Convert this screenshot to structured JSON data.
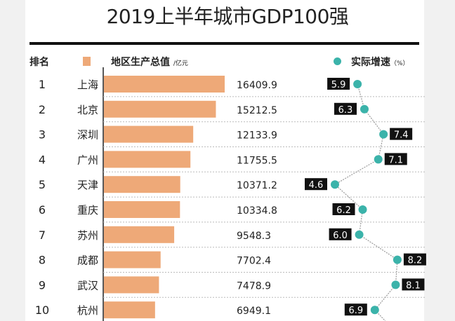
{
  "chart_data": {
    "type": "bar",
    "title": "2019上半年城市GDP100强",
    "rank_header": "排名",
    "series": [
      {
        "name": "地区生产总值",
        "unit": "/亿元",
        "color": "#eea978",
        "values": [
          16409.9,
          15212.5,
          12133.9,
          11755.5,
          10371.2,
          10334.8,
          9548.3,
          7702.4,
          7478.9,
          6949.1
        ]
      },
      {
        "name": "实际增速",
        "unit": "（%）",
        "color": "#3bb3aa",
        "type": "line",
        "values": [
          5.9,
          6.3,
          7.4,
          7.1,
          4.6,
          6.2,
          6.0,
          8.2,
          8.1,
          6.9
        ]
      }
    ],
    "ranks": [
      "1",
      "2",
      "3",
      "4",
      "5",
      "6",
      "7",
      "8",
      "9",
      "10"
    ],
    "categories": [
      "上海",
      "北京",
      "深圳",
      "广州",
      "天津",
      "重庆",
      "苏州",
      "成都",
      "武汉",
      "杭州"
    ],
    "value_labels": [
      "16409.9",
      "15212.5",
      "12133.9",
      "11755.5",
      "10371.2",
      "10334.8",
      "9548.3",
      "7702.4",
      "7478.9",
      "6949.1"
    ],
    "growth_labels": [
      "5.9",
      "6.3",
      "7.4",
      "7.1",
      "4.6",
      "6.2",
      "6.0",
      "8.2",
      "8.1",
      "6.9"
    ],
    "growth_label_side": [
      "left",
      "left",
      "right",
      "right",
      "left",
      "left",
      "left",
      "right",
      "right",
      "left"
    ]
  }
}
